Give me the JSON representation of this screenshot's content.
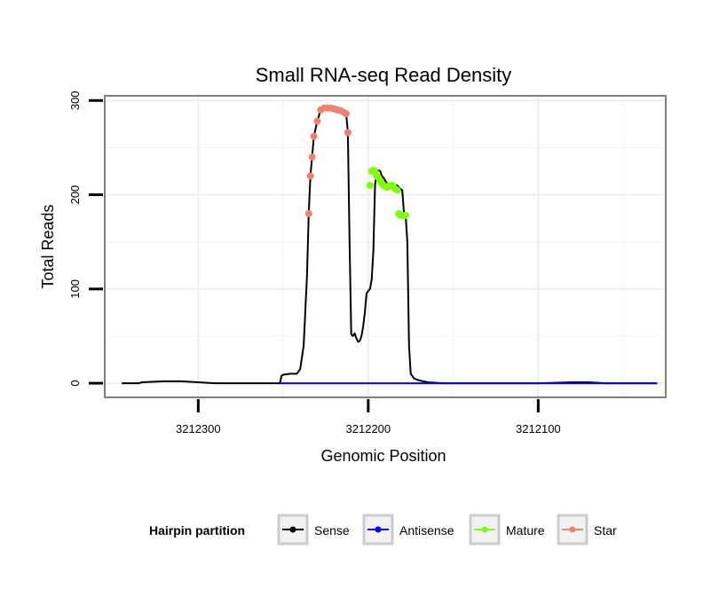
{
  "chart_data": {
    "type": "line",
    "title": "Small RNA-seq Read Density",
    "xlabel": "Genomic Position",
    "ylabel": "Total Reads",
    "xlim": [
      3212355,
      3212025
    ],
    "ylim": [
      -15,
      305
    ],
    "x_ticks": [
      3212300,
      3212200,
      3212100
    ],
    "x_tick_labels": [
      "3212300",
      "3212200",
      "3212100"
    ],
    "y_ticks": [
      0,
      100,
      200,
      300
    ],
    "y_tick_labels": [
      "0",
      "100",
      "200",
      "300"
    ],
    "grid": true,
    "legend": {
      "title": "Hairpin partition",
      "position": "bottom",
      "entries": [
        {
          "key": "sense",
          "label": "Sense",
          "color": "#000000"
        },
        {
          "key": "antisense",
          "label": "Antisense",
          "color": "#0000ff"
        },
        {
          "key": "mature",
          "label": "Mature",
          "color": "#7fff00"
        },
        {
          "key": "star",
          "label": "Star",
          "color": "#f08070"
        }
      ]
    },
    "series": [
      {
        "name": "Sense",
        "key": "sense",
        "style": "line",
        "color": "#000000",
        "x": [
          3212345,
          3212335,
          3212333,
          3212320,
          3212310,
          3212290,
          3212260,
          3212252,
          3212251,
          3212250,
          3212246,
          3212242,
          3212240,
          3212238,
          3212236,
          3212235,
          3212234,
          3212233,
          3212232,
          3212230,
          3212228,
          3212226,
          3212224,
          3212222,
          3212220,
          3212218,
          3212216,
          3212214,
          3212213,
          3212212,
          3212211,
          3212210,
          3212209,
          3212208,
          3212207,
          3212206,
          3212205,
          3212204,
          3212203,
          3212202,
          3212201,
          3212200,
          3212199,
          3212198,
          3212197,
          3212196,
          3212195,
          3212194,
          3212193,
          3212192,
          3212191,
          3212190,
          3212189,
          3212188,
          3212187,
          3212186,
          3212185,
          3212184,
          3212183,
          3212182,
          3212181,
          3212180,
          3212179,
          3212178,
          3212177,
          3212176,
          3212175,
          3212173,
          3212170,
          3212165,
          3212155,
          3212100,
          3212080,
          3212070,
          3212060,
          3212030
        ],
        "y": [
          0,
          0,
          1,
          2,
          2,
          0,
          0,
          0,
          8,
          9,
          10,
          10,
          15,
          40,
          115,
          180,
          220,
          240,
          262,
          278,
          290,
          292,
          292,
          292,
          291,
          290,
          289,
          287,
          286,
          266,
          150,
          52,
          50,
          53,
          48,
          44,
          45,
          50,
          60,
          75,
          95,
          98,
          100,
          110,
          140,
          210,
          225,
          226,
          225,
          220,
          218,
          215,
          212,
          210,
          209,
          208,
          209,
          210,
          210,
          208,
          206,
          205,
          180,
          178,
          150,
          40,
          10,
          5,
          3,
          1,
          0,
          0,
          1,
          1,
          0,
          0
        ]
      },
      {
        "name": "Antisense",
        "key": "antisense",
        "style": "line",
        "color": "#0000ff",
        "x": [
          3212252,
          3212030
        ],
        "y": [
          0,
          0
        ]
      },
      {
        "name": "Mature",
        "key": "mature",
        "style": "points",
        "color": "#7fff00",
        "x": [
          3212199,
          3212198,
          3212197,
          3212196,
          3212195,
          3212194,
          3212193,
          3212192,
          3212191,
          3212190,
          3212189,
          3212188,
          3212187,
          3212186,
          3212185,
          3212184,
          3212183,
          3212182,
          3212181,
          3212180,
          3212179,
          3212178
        ],
        "y": [
          210,
          225,
          226,
          225,
          220,
          218,
          215,
          212,
          210,
          209,
          208,
          209,
          210,
          210,
          208,
          206,
          205,
          180,
          178,
          178,
          178,
          178
        ]
      },
      {
        "name": "Star",
        "key": "star",
        "style": "points",
        "color": "#f08070",
        "x": [
          3212235,
          3212234,
          3212233,
          3212232,
          3212230,
          3212228,
          3212226,
          3212224,
          3212222,
          3212220,
          3212218,
          3212216,
          3212214,
          3212213,
          3212212
        ],
        "y": [
          180,
          220,
          240,
          262,
          278,
          290,
          292,
          292,
          292,
          291,
          290,
          289,
          287,
          286,
          266
        ]
      }
    ]
  }
}
